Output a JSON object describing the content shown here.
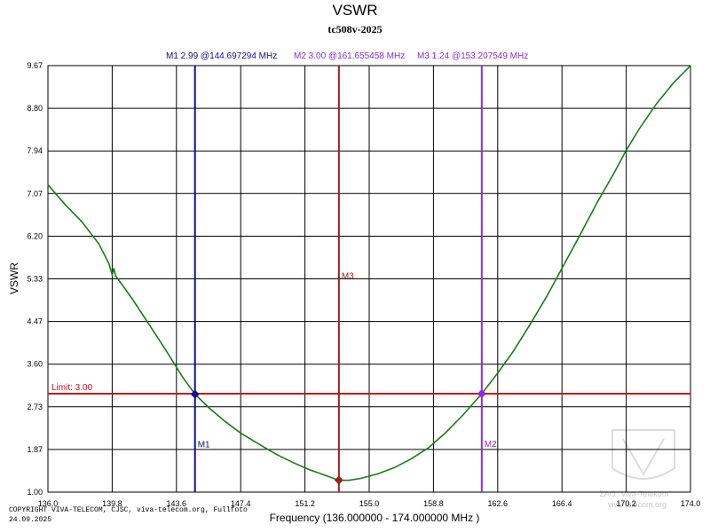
{
  "chart_data": {
    "type": "line",
    "title": "VSWR",
    "subtitle": "tc508v-2025",
    "xlabel": "Frequency (136.000000 - 174.000000 MHz )",
    "ylabel": "VSWR",
    "xlim": [
      136.0,
      174.0
    ],
    "ylim": [
      1.0,
      9.67
    ],
    "x_ticks": [
      "136.0",
      "139.8",
      "143.6",
      "147.4",
      "151.2",
      "155.0",
      "158.8",
      "162.6",
      "166.4",
      "170.2",
      "174.0"
    ],
    "y_ticks": [
      "1.00",
      "1.87",
      "2.73",
      "3.60",
      "4.47",
      "5.33",
      "6.20",
      "7.07",
      "7.94",
      "8.80",
      "9.67"
    ],
    "series": [
      {
        "name": "VSWR",
        "color": "#1a7a1a",
        "x": [
          136.0,
          137.0,
          138.0,
          139.0,
          139.6,
          139.8,
          139.9,
          140.0,
          141.0,
          142.0,
          143.0,
          144.0,
          144.7,
          145.5,
          146.5,
          147.4,
          148.5,
          149.5,
          150.5,
          151.5,
          152.5,
          153.2,
          153.8,
          154.5,
          155.5,
          156.5,
          157.5,
          158.5,
          159.5,
          160.5,
          161.66,
          162.6,
          163.5,
          164.5,
          165.5,
          166.4,
          167.5,
          168.5,
          169.5,
          170.2,
          171.0,
          172.0,
          173.0,
          174.0
        ],
        "y": [
          7.25,
          6.85,
          6.5,
          6.05,
          5.65,
          5.42,
          5.55,
          5.4,
          4.92,
          4.4,
          3.87,
          3.32,
          2.99,
          2.72,
          2.43,
          2.2,
          1.97,
          1.77,
          1.6,
          1.45,
          1.33,
          1.24,
          1.24,
          1.28,
          1.37,
          1.5,
          1.68,
          1.9,
          2.2,
          2.55,
          3.0,
          3.42,
          3.85,
          4.4,
          4.98,
          5.55,
          6.25,
          6.9,
          7.5,
          7.95,
          8.4,
          8.9,
          9.32,
          9.67
        ]
      }
    ],
    "limit": {
      "label": "Limit: 3.00",
      "value": 3.0,
      "color": "#cc1111"
    },
    "markers": [
      {
        "name": "M1",
        "freq": 144.697294,
        "value": 2.99,
        "info": "M1   2.99 @144.697294 MHz",
        "color": "#101090"
      },
      {
        "name": "M2",
        "freq": 161.655458,
        "value": 3.0,
        "info": "M2   3.00 @161.655458 MHz",
        "color": "#8a2be2"
      },
      {
        "name": "M3",
        "freq": 153.207549,
        "value": 1.24,
        "info": "M3   1.24 @153.207549 MHz",
        "color": "#992222"
      }
    ]
  },
  "footer": {
    "copyright": "COPYRIGHT VIVA-TELECOM, CJSC, viva-telecom.org, Fullfoto",
    "date": "24.09.2025"
  },
  "watermark": {
    "line1": "ZAO \"Viva-Telekom\"",
    "line2": "viva-telecom.org"
  }
}
